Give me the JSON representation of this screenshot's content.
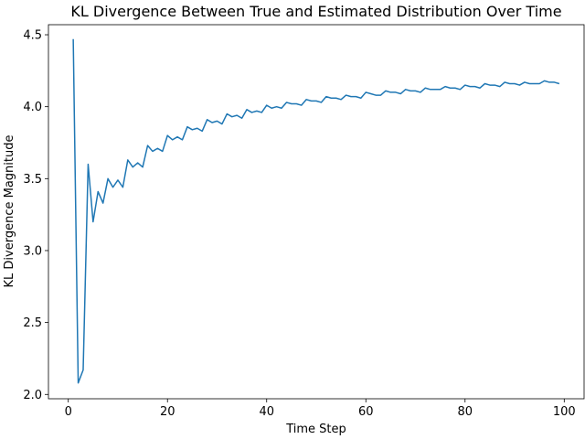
{
  "chart_data": {
    "type": "line",
    "title": "KL Divergence Between True and Estimated Distribution Over Time",
    "xlabel": "Time Step",
    "ylabel": "KL Divergence Magnitude",
    "xlim": [
      -4,
      104
    ],
    "ylim": [
      1.97,
      4.57
    ],
    "xticks": [
      0,
      20,
      40,
      60,
      80,
      100
    ],
    "yticks": [
      2.0,
      2.5,
      3.0,
      3.5,
      4.0,
      4.5
    ],
    "xtick_labels": [
      "0",
      "20",
      "40",
      "60",
      "80",
      "100"
    ],
    "ytick_labels": [
      "2.0",
      "2.5",
      "3.0",
      "3.5",
      "4.0",
      "4.5"
    ],
    "grid": false,
    "line_color": "#1f77b4",
    "series": [
      {
        "x": [
          1,
          2,
          3,
          4,
          5,
          6,
          7,
          8,
          9,
          10,
          11,
          12,
          13,
          14,
          15,
          16,
          17,
          18,
          19,
          20,
          21,
          22,
          23,
          24,
          25,
          26,
          27,
          28,
          29,
          30,
          31,
          32,
          33,
          34,
          35,
          36,
          37,
          38,
          39,
          40,
          41,
          42,
          43,
          44,
          45,
          46,
          47,
          48,
          49,
          50,
          51,
          52,
          53,
          54,
          55,
          56,
          57,
          58,
          59,
          60,
          61,
          62,
          63,
          64,
          65,
          66,
          67,
          68,
          69,
          70,
          71,
          72,
          73,
          74,
          75,
          76,
          77,
          78,
          79,
          80,
          81,
          82,
          83,
          84,
          85,
          86,
          87,
          88,
          89,
          90,
          91,
          92,
          93,
          94,
          95,
          96,
          97,
          98,
          99
        ],
        "values": [
          4.47,
          2.08,
          2.17,
          3.6,
          3.2,
          3.41,
          3.33,
          3.5,
          3.44,
          3.49,
          3.44,
          3.63,
          3.58,
          3.61,
          3.58,
          3.73,
          3.69,
          3.71,
          3.69,
          3.8,
          3.77,
          3.79,
          3.77,
          3.86,
          3.84,
          3.85,
          3.83,
          3.91,
          3.89,
          3.9,
          3.88,
          3.95,
          3.93,
          3.94,
          3.92,
          3.98,
          3.96,
          3.97,
          3.96,
          4.01,
          3.99,
          4.0,
          3.99,
          4.03,
          4.02,
          4.02,
          4.01,
          4.05,
          4.04,
          4.04,
          4.03,
          4.07,
          4.06,
          4.06,
          4.05,
          4.08,
          4.07,
          4.07,
          4.06,
          4.1,
          4.09,
          4.08,
          4.08,
          4.11,
          4.1,
          4.1,
          4.09,
          4.12,
          4.11,
          4.11,
          4.1,
          4.13,
          4.12,
          4.12,
          4.12,
          4.14,
          4.13,
          4.13,
          4.12,
          4.15,
          4.14,
          4.14,
          4.13,
          4.16,
          4.15,
          4.15,
          4.14,
          4.17,
          4.16,
          4.16,
          4.15,
          4.17,
          4.16,
          4.16,
          4.16,
          4.18,
          4.17,
          4.17,
          4.16
        ]
      }
    ]
  }
}
